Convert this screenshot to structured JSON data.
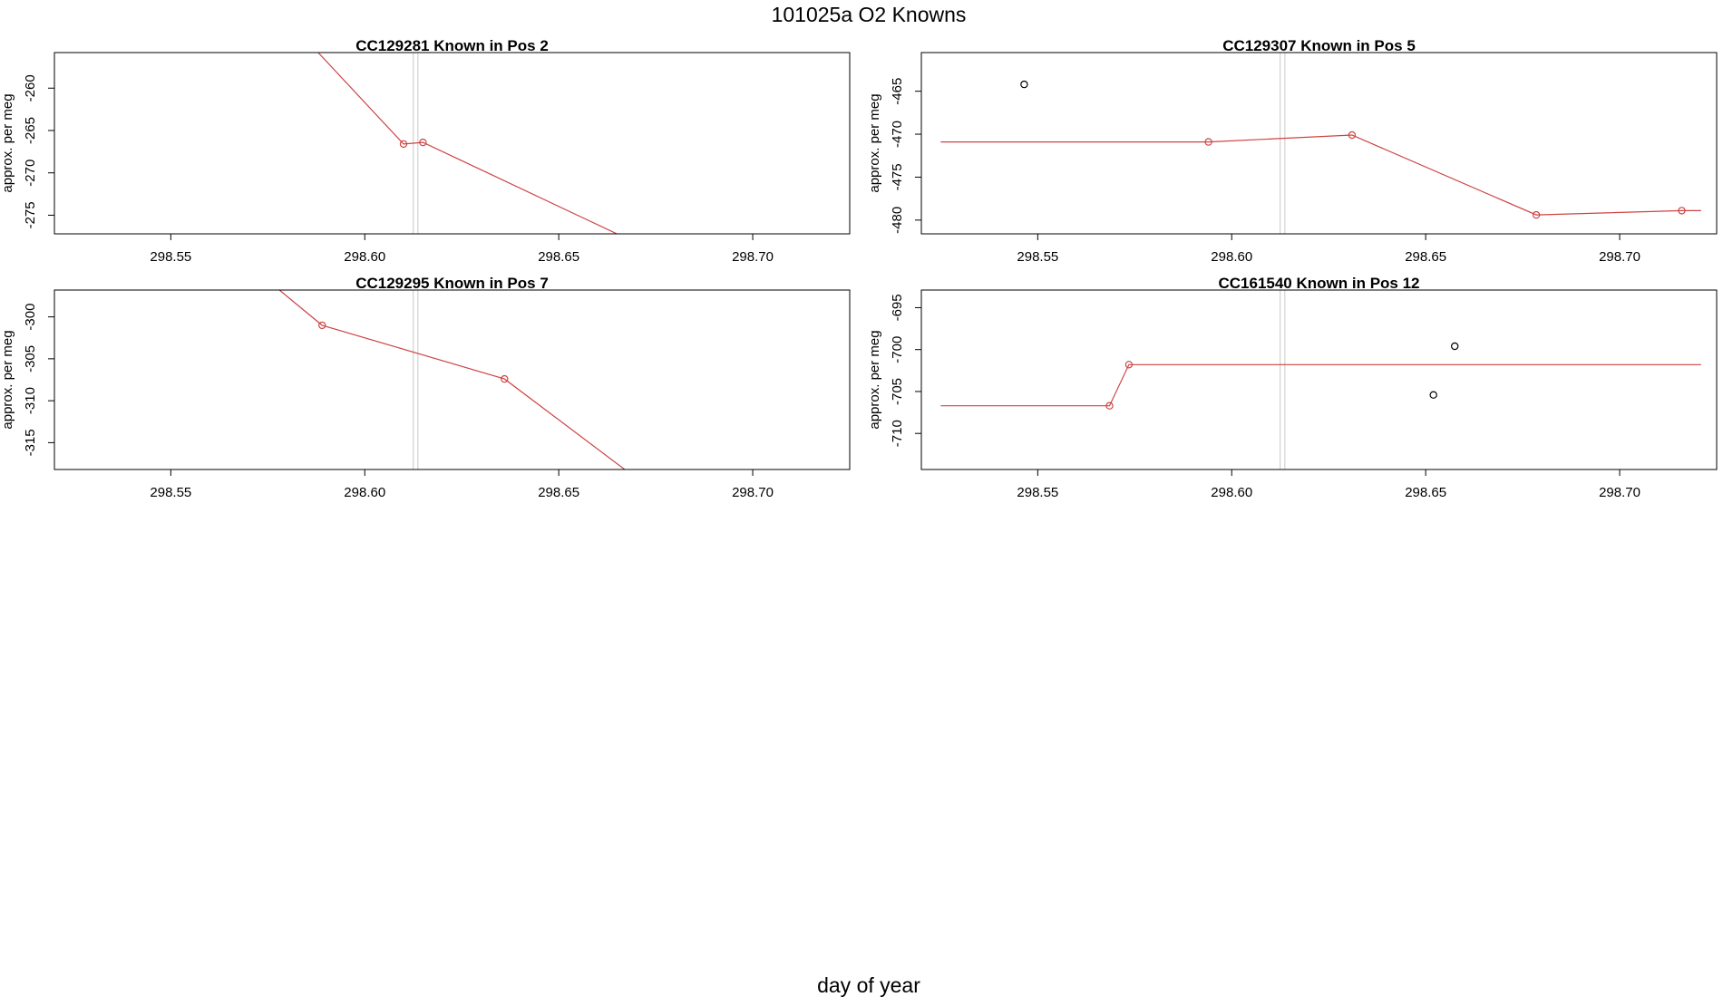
{
  "figure": {
    "title": "101025a   O2 Knowns",
    "xlabel": "day of year"
  },
  "colors": {
    "fit_line": "#cc4444",
    "fit_point": "#cc4444",
    "outlier_point": "#000000",
    "marker_line": "#c8c8c8",
    "frame": "#000000"
  },
  "chart_data": [
    {
      "type": "line",
      "title": "CC129281    Known in Pos 2",
      "ylabel": "approx. per meg",
      "xlim": [
        298.52,
        298.725
      ],
      "ylim": [
        -277.2,
        -255.8
      ],
      "xticks": [
        298.55,
        298.6,
        298.65,
        298.7
      ],
      "xtick_labels": [
        "298.55",
        "298.60",
        "298.65",
        "298.70"
      ],
      "yticks": [
        -260,
        -265,
        -270,
        -275
      ],
      "ytick_labels": [
        "-260",
        "-265",
        "-270",
        "-275"
      ],
      "markers": [
        298.6125,
        298.6137
      ],
      "series": [
        {
          "style": "line",
          "x": [
            298.588,
            298.61,
            298.615,
            298.665
          ],
          "y": [
            -255.8,
            -266.6,
            -266.4,
            -277.2
          ]
        },
        {
          "style": "points-fit",
          "x": [
            298.61,
            298.615
          ],
          "y": [
            -266.6,
            -266.4
          ]
        }
      ]
    },
    {
      "type": "line",
      "title": "CC129307    Known in Pos 5",
      "ylabel": "approx. per meg",
      "xlim": [
        298.52,
        298.725
      ],
      "ylim": [
        -481.6,
        -460.5
      ],
      "xticks": [
        298.55,
        298.6,
        298.65,
        298.7
      ],
      "xtick_labels": [
        "298.55",
        "298.60",
        "298.65",
        "298.70"
      ],
      "yticks": [
        -465,
        -470,
        -475,
        -480
      ],
      "ytick_labels": [
        "-465",
        "-470",
        "-475",
        "-480"
      ],
      "markers": [
        298.6125,
        298.6137
      ],
      "series": [
        {
          "style": "line",
          "x": [
            298.525,
            298.594,
            298.631,
            298.6785,
            298.716,
            298.721
          ],
          "y": [
            -470.9,
            -470.9,
            -470.1,
            -479.4,
            -478.9,
            -478.9
          ]
        },
        {
          "style": "points-fit",
          "x": [
            298.594,
            298.631,
            298.6785,
            298.716
          ],
          "y": [
            -470.9,
            -470.1,
            -479.4,
            -478.9
          ]
        },
        {
          "style": "points-outlier",
          "x": [
            298.5465
          ],
          "y": [
            -464.2
          ]
        }
      ]
    },
    {
      "type": "line",
      "title": "CC129295    Known in Pos 7",
      "ylabel": "approx. per meg",
      "xlim": [
        298.52,
        298.725
      ],
      "ylim": [
        -318.2,
        -296.8
      ],
      "xticks": [
        298.55,
        298.6,
        298.65,
        298.7
      ],
      "xtick_labels": [
        "298.55",
        "298.60",
        "298.65",
        "298.70"
      ],
      "yticks": [
        -300,
        -305,
        -310,
        -315
      ],
      "ytick_labels": [
        "-300",
        "-305",
        "-310",
        "-315"
      ],
      "markers": [
        298.6125,
        298.6137
      ],
      "series": [
        {
          "style": "line",
          "x": [
            298.578,
            298.589,
            298.636,
            298.667
          ],
          "y": [
            -296.8,
            -301.0,
            -307.4,
            -318.2
          ]
        },
        {
          "style": "points-fit",
          "x": [
            298.589,
            298.636
          ],
          "y": [
            -301.0,
            -307.4
          ]
        }
      ]
    },
    {
      "type": "line",
      "title": "CC161540    Known in Pos 12",
      "ylabel": "approx. per meg",
      "xlim": [
        298.52,
        298.725
      ],
      "ylim": [
        -714.3,
        -692.9
      ],
      "xticks": [
        298.55,
        298.6,
        298.65,
        298.7
      ],
      "xtick_labels": [
        "298.55",
        "298.60",
        "298.65",
        "298.70"
      ],
      "yticks": [
        -695,
        -700,
        -705,
        -710
      ],
      "ytick_labels": [
        "-695",
        "-700",
        "-705",
        "-710"
      ],
      "markers": [
        298.6125,
        298.6137
      ],
      "series": [
        {
          "style": "line",
          "x": [
            298.525,
            298.5685,
            298.5735,
            298.721
          ],
          "y": [
            -706.7,
            -706.7,
            -701.8,
            -701.8
          ]
        },
        {
          "style": "points-fit",
          "x": [
            298.5685,
            298.5735
          ],
          "y": [
            -706.7,
            -701.8
          ]
        },
        {
          "style": "points-outlier",
          "x": [
            298.652,
            298.6575
          ],
          "y": [
            -705.4,
            -699.6
          ]
        }
      ]
    }
  ]
}
